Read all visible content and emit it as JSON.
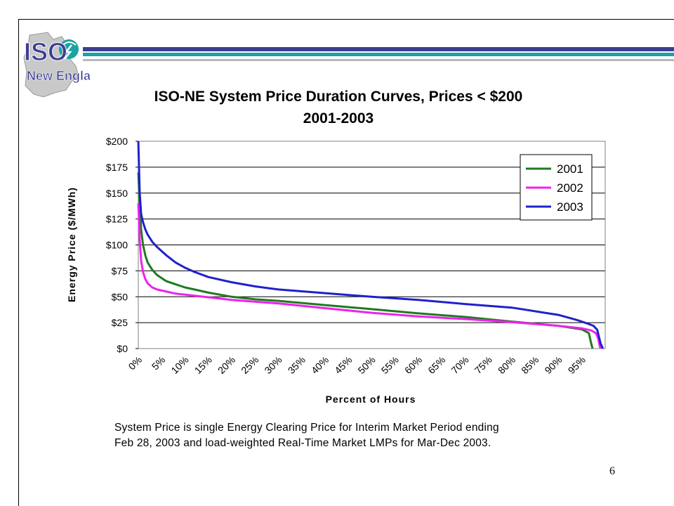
{
  "logo": {
    "text_top": "ISO",
    "text_bottom": "New England"
  },
  "slide_number": "6",
  "note": {
    "line1": "System Price is single Energy Clearing Price for Interim Market Period ending",
    "line2": "Feb 28, 2003 and load-weighted Real-Time Market LMPs for Mar-Dec 2003."
  },
  "colors": {
    "navy": "#3d3f93",
    "teal": "#1aa3a3",
    "gray_band": "#b8b8b8"
  },
  "chart_data": {
    "type": "line",
    "title": "ISO-NE System Price Duration Curves, Prices < $200",
    "subtitle": "2001-2003",
    "xlabel": "Percent of Hours",
    "ylabel": "Energy Price ($/MWh)",
    "xlim": [
      0,
      100
    ],
    "ylim": [
      0,
      200
    ],
    "x_ticks": [
      "0%",
      "5%",
      "10%",
      "15%",
      "20%",
      "25%",
      "30%",
      "35%",
      "40%",
      "45%",
      "50%",
      "55%",
      "60%",
      "65%",
      "70%",
      "75%",
      "80%",
      "85%",
      "90%",
      "95%"
    ],
    "y_ticks": [
      "$0",
      "$25",
      "$50",
      "$75",
      "$100",
      "$125",
      "$150",
      "$175",
      "$200"
    ],
    "grid": "horizontal",
    "legend_position": "top-right",
    "series": [
      {
        "name": "2001",
        "color": "#1f7a1f",
        "x": [
          0,
          0.3,
          0.6,
          1,
          1.5,
          2,
          3,
          4,
          5,
          6,
          8,
          10,
          12,
          15,
          20,
          25,
          30,
          40,
          50,
          60,
          70,
          80,
          90,
          95,
          96.5,
          97,
          97.3
        ],
        "y": [
          170,
          140,
          115,
          100,
          90,
          83,
          76,
          71,
          68,
          65,
          62,
          59,
          57,
          54,
          50,
          47.5,
          46,
          42,
          38,
          34,
          30.5,
          26,
          22,
          18.5,
          15,
          5,
          0
        ]
      },
      {
        "name": "2002",
        "color": "#ee22ee",
        "x": [
          0,
          0.3,
          0.6,
          1,
          1.5,
          2,
          3,
          4,
          5,
          6,
          8,
          10,
          15,
          20,
          30,
          40,
          50,
          60,
          70,
          80,
          90,
          95,
          97,
          98,
          98.5,
          98.8,
          99
        ],
        "y": [
          140,
          105,
          85,
          74,
          67,
          63,
          59,
          57,
          56,
          55,
          53,
          52,
          49.5,
          47,
          43.5,
          39,
          34.5,
          31,
          28.5,
          25.5,
          22,
          19.5,
          17.5,
          15,
          10,
          3,
          0
        ]
      },
      {
        "name": "2003",
        "color": "#2020cc",
        "x": [
          0,
          0.3,
          0.6,
          1,
          1.5,
          2,
          3,
          4,
          5,
          6,
          8,
          10,
          12,
          15,
          20,
          25,
          30,
          40,
          50,
          60,
          70,
          80,
          90,
          94,
          96,
          97.5,
          98.3,
          99,
          99.5
        ],
        "y": [
          200,
          150,
          130,
          122,
          115,
          110,
          103,
          98,
          94,
          90,
          83,
          78,
          74,
          69,
          64,
          60,
          57,
          53.5,
          50,
          47,
          43,
          39.5,
          32.5,
          27.5,
          24.5,
          22,
          18,
          5,
          0
        ]
      }
    ]
  }
}
